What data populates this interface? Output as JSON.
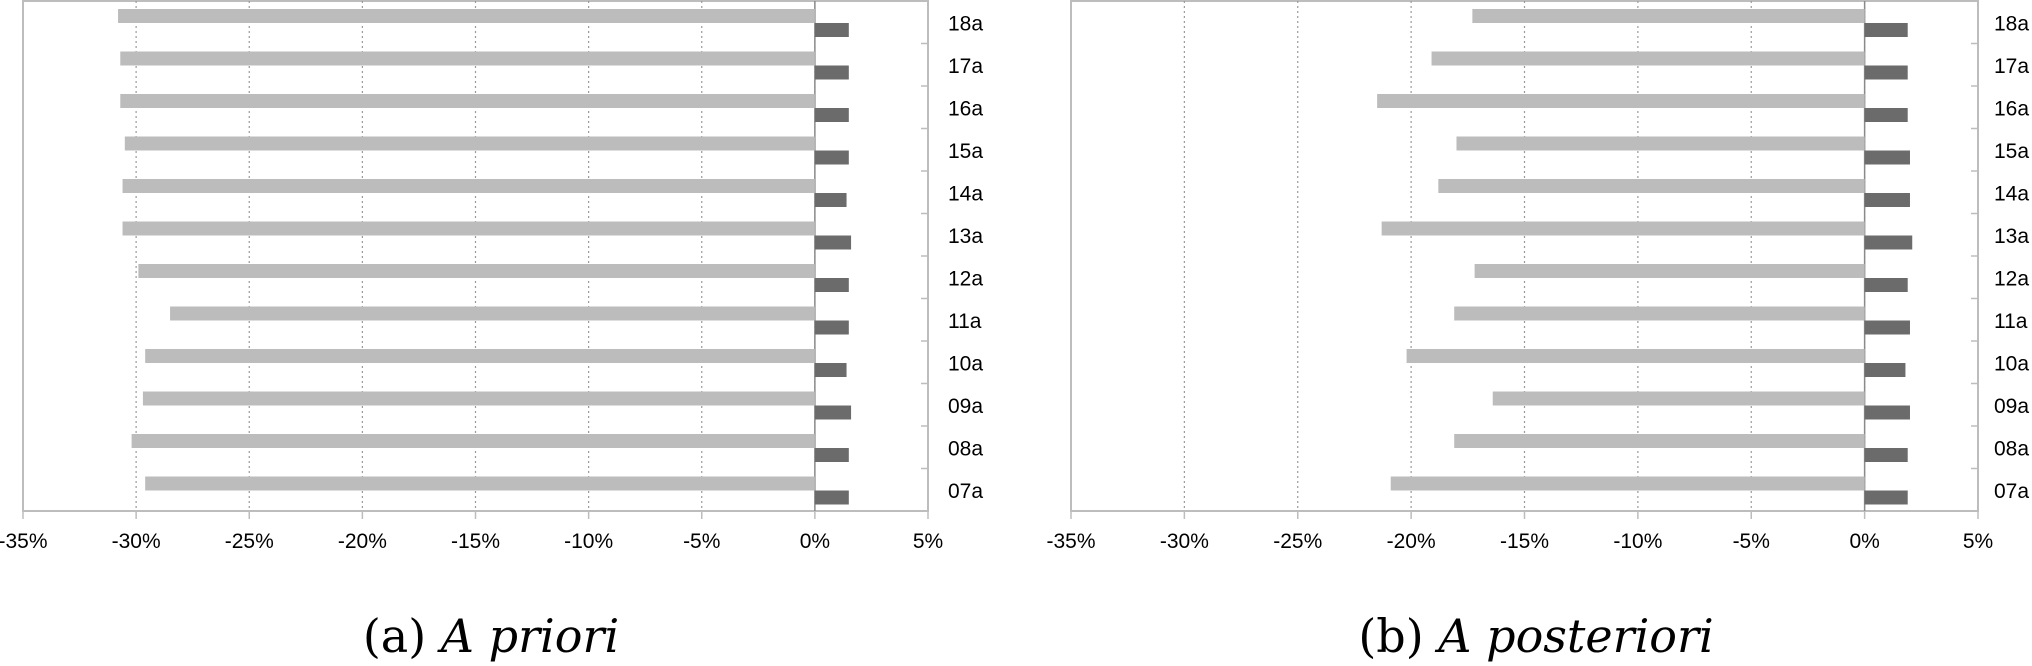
{
  "chart_data": [
    {
      "type": "bar",
      "orientation": "horizontal",
      "caption_label": "(a)",
      "caption_title": "A priori",
      "categories": [
        "07a",
        "08a",
        "09a",
        "10a",
        "11a",
        "12a",
        "13a",
        "14a",
        "15a",
        "16a",
        "17a",
        "18a"
      ],
      "series": [
        {
          "values": [
            -29.6,
            -30.2,
            -29.7,
            -29.6,
            -28.5,
            -29.9,
            -30.6,
            -30.6,
            -30.5,
            -30.7,
            -30.7,
            -30.8
          ]
        },
        {
          "values": [
            1.5,
            1.5,
            1.6,
            1.4,
            1.5,
            1.5,
            1.6,
            1.4,
            1.5,
            1.5,
            1.5,
            1.5
          ]
        }
      ],
      "xlim": [
        -35,
        5
      ],
      "xticks": [
        "-35%",
        "-30%",
        "-25%",
        "-20%",
        "-15%",
        "-10%",
        "-5%",
        "0%",
        "5%"
      ],
      "grid": true,
      "colors": {
        "series_0": "#bcbcbc",
        "series_1": "#6b6b6b",
        "grid": "#9a9a9a",
        "frame": "#bdbdbd"
      }
    },
    {
      "type": "bar",
      "orientation": "horizontal",
      "caption_label": "(b)",
      "caption_title": "A posteriori",
      "categories": [
        "07a",
        "08a",
        "09a",
        "10a",
        "11a",
        "12a",
        "13a",
        "14a",
        "15a",
        "16a",
        "17a",
        "18a"
      ],
      "series": [
        {
          "values": [
            -20.9,
            -18.1,
            -16.4,
            -20.2,
            -18.1,
            -17.2,
            -21.3,
            -18.8,
            -18.0,
            -21.5,
            -19.1,
            -17.3
          ]
        },
        {
          "values": [
            1.9,
            1.9,
            2.0,
            1.8,
            2.0,
            1.9,
            2.1,
            2.0,
            2.0,
            1.9,
            1.9,
            1.9
          ]
        }
      ],
      "xlim": [
        -35,
        5
      ],
      "xticks": [
        "-35%",
        "-30%",
        "-25%",
        "-20%",
        "-15%",
        "-10%",
        "-5%",
        "0%",
        "5%"
      ],
      "grid": true,
      "colors": {
        "series_0": "#bcbcbc",
        "series_1": "#6b6b6b",
        "grid": "#9a9a9a",
        "frame": "#bdbdbd"
      }
    }
  ]
}
